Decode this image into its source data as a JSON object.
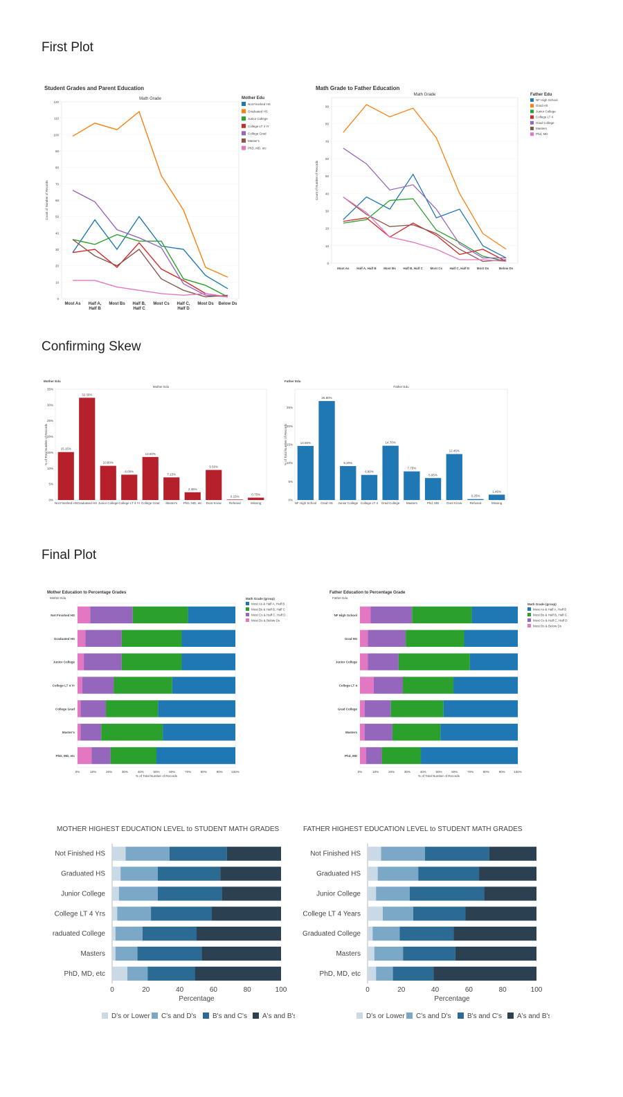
{
  "sections": {
    "first": "First Plot",
    "skew": "Confirming Skew",
    "final": "Final Plot"
  },
  "colors": {
    "tab": [
      "#1f77b4",
      "#ff7f0e",
      "#2ca02c",
      "#d62728",
      "#9467bd",
      "#8c564b",
      "#e377c2"
    ],
    "mother_bar": "#b5202a",
    "father_bar": "#1f77b4",
    "pct_groups": [
      "#1f77b4",
      "#2ca02c",
      "#9467bd",
      "#e377c2"
    ],
    "blues": [
      "#c9d9e6",
      "#7ca8c8",
      "#2b6a92",
      "#2b4152"
    ]
  },
  "chart_data": [
    {
      "type": "line",
      "title": "Student Grades and Parent Education",
      "subtitle": "Math Grade",
      "ylabel": "Count of Number of Records",
      "legend_title": "Mother Edu",
      "legend_position": "top-right",
      "categories": [
        "Most As",
        "Half A, Half B",
        "Most Bs",
        "Half B, Half C",
        "Most Cs",
        "Half C, Half D",
        "Most Ds",
        "Below Ds"
      ],
      "ylim": [
        0,
        120
      ],
      "yticks": [
        0,
        10,
        20,
        30,
        40,
        50,
        60,
        70,
        80,
        90,
        100,
        110,
        120
      ],
      "series": [
        {
          "name": "Not Finished HS",
          "values": [
            28,
            48,
            30,
            50,
            32,
            30,
            14,
            6
          ]
        },
        {
          "name": "Graduated HS",
          "values": [
            99,
            107,
            103,
            114,
            75,
            54,
            19,
            13
          ]
        },
        {
          "name": "Junior College",
          "values": [
            36,
            33,
            39,
            35,
            35,
            12,
            8,
            1
          ]
        },
        {
          "name": "College LT 4 Yr",
          "values": [
            28,
            30,
            19,
            34,
            18,
            11,
            3,
            1
          ]
        },
        {
          "name": "College Grad",
          "values": [
            66,
            59,
            42,
            37,
            31,
            9,
            2,
            1
          ]
        },
        {
          "name": "Master's",
          "values": [
            36,
            26,
            20,
            30,
            12,
            5,
            1,
            2
          ]
        },
        {
          "name": "PhD, MD, etc",
          "values": [
            11,
            11,
            7,
            5,
            3,
            2,
            3,
            1
          ]
        }
      ]
    },
    {
      "type": "line",
      "title": "Math Grade to Father Education",
      "subtitle": "Math Grade",
      "ylabel": "Count of Number of Records",
      "legend_title": "Father Edu",
      "legend_position": "top-right",
      "categories": [
        "Most As",
        "Half A, Half B",
        "Most Bs",
        "Half B, Half C",
        "Most Cs",
        "Half C, Half D",
        "Most Ds",
        "Below Ds"
      ],
      "ylim": [
        0,
        95
      ],
      "yticks": [
        0,
        10,
        20,
        30,
        40,
        50,
        60,
        70,
        80,
        90
      ],
      "series": [
        {
          "name": "NF High School",
          "values": [
            25,
            38,
            31,
            51,
            26,
            31,
            10,
            3
          ]
        },
        {
          "name": "Grad HS",
          "values": [
            75,
            91,
            84,
            89,
            72,
            40,
            17,
            8
          ]
        },
        {
          "name": "Junior College",
          "values": [
            23,
            25,
            36,
            37,
            19,
            12,
            4,
            1
          ]
        },
        {
          "name": "College LT 4",
          "values": [
            24,
            26,
            15,
            23,
            16,
            5,
            8,
            1
          ]
        },
        {
          "name": "Grad College",
          "values": [
            66,
            57,
            42,
            45,
            31,
            11,
            3,
            3
          ]
        },
        {
          "name": "Masters",
          "values": [
            38,
            28,
            21,
            22,
            17,
            8,
            1,
            2
          ]
        },
        {
          "name": "Phd, MD",
          "values": [
            38,
            29,
            15,
            12,
            8,
            2,
            2,
            1
          ]
        }
      ]
    },
    {
      "type": "bar",
      "title": "Mother Edu",
      "subtitle": "Mother Edu",
      "ylabel": "% of Total Number of Records",
      "categories": [
        "Not Finished HS",
        "Graduated HS",
        "Junior College",
        "College LT 4 Yr",
        "College Grad",
        "Master's",
        "PhD, MD, etc",
        "Dont Know",
        "Refused",
        "Missing"
      ],
      "values": [
        15.15,
        32.3,
        10.8,
        8.0,
        13.6,
        7.15,
        2.45,
        9.5,
        0.15,
        0.75
      ],
      "value_labels": [
        "15.15%",
        "32.30%",
        "10.80%",
        "8.00%",
        "13.60%",
        "7.15%",
        "2.45%",
        "9.50%",
        "0.15%",
        "0.75%"
      ],
      "ylim": [
        0,
        35
      ],
      "yticks": [
        "0%",
        "5%",
        "10%",
        "15%",
        "20%",
        "25%",
        "30%",
        "35%"
      ]
    },
    {
      "type": "bar",
      "title": "Father Edu",
      "subtitle": "Father Edu",
      "ylabel": "% of Total Number of Records",
      "categories": [
        "NF High School",
        "Grad HS",
        "Junior College",
        "College LT 4",
        "Grad College",
        "Masters",
        "Phd, MD",
        "Dont Know",
        "Refused",
        "Missing"
      ],
      "values": [
        14.65,
        26.8,
        9.2,
        6.8,
        14.7,
        7.75,
        5.95,
        12.45,
        0.25,
        1.45
      ],
      "value_labels": [
        "14.65%",
        "26.80%",
        "9.20%",
        "6.80%",
        "14.70%",
        "7.75%",
        "5.95%",
        "12.45%",
        "0.25%",
        "1.45%"
      ],
      "ylim": [
        0,
        30
      ],
      "yticks": [
        "0%",
        "5%",
        "10%",
        "15%",
        "20%",
        "25%"
      ]
    },
    {
      "type": "bar",
      "title": "Mother Education to Percentage Grades",
      "subtitle": "Mother Edu",
      "xlabel": "% of Total Number of Records",
      "legend_title": "Math Grade (group)",
      "legend_position": "top-right",
      "categories": [
        "Not Finished HS",
        "Graduated HS",
        "Junior College",
        "College LT 4 Yr",
        "College Grad",
        "Master's",
        "PhD, MD, etc"
      ],
      "xticks": [
        "0%",
        "10%",
        "20%",
        "30%",
        "40%",
        "50%",
        "60%",
        "70%",
        "80%",
        "90%",
        "100%"
      ],
      "series": [
        {
          "name": "Most Ds & Below Ds",
          "values": [
            8,
            5,
            4,
            3,
            2,
            2,
            9
          ]
        },
        {
          "name": "Most Cs & Half C, Half D",
          "values": [
            27,
            23,
            24,
            20,
            16,
            13,
            12
          ]
        },
        {
          "name": "Most Bs & Half B, Half C",
          "values": [
            35,
            38,
            38,
            37,
            33,
            39,
            29
          ]
        },
        {
          "name": "Most As & Half A, Half B",
          "values": [
            30,
            34,
            34,
            40,
            49,
            46,
            50
          ]
        }
      ],
      "legend_entries": [
        "Most As & Half A, Half B",
        "Most Bs & Half B, Half C",
        "Most Cs & Half C, Half D",
        "Most Ds & Below Ds"
      ]
    },
    {
      "type": "bar",
      "title": "Father Education to Percentage Grade",
      "subtitle": "Father Edu",
      "xlabel": "% of Total Number of Records",
      "legend_title": "Math Grade (group)",
      "legend_position": "top-right",
      "categories": [
        "NF High School",
        "Grad HS",
        "Junior College",
        "College LT 4",
        "Grad College",
        "Masters",
        "Phd, MD"
      ],
      "xticks": [
        "0%",
        "10%",
        "20%",
        "30%",
        "40%",
        "50%",
        "60%",
        "70%",
        "80%",
        "90%",
        "100%"
      ],
      "series": [
        {
          "name": "Most Ds & Below Ds",
          "values": [
            7,
            5,
            5,
            9,
            3,
            3,
            4
          ]
        },
        {
          "name": "Most Cs & Half C, Half D",
          "values": [
            27,
            24,
            20,
            19,
            17,
            18,
            10
          ]
        },
        {
          "name": "Most Bs & Half B, Half C",
          "values": [
            39,
            37,
            46,
            33,
            34,
            31,
            25
          ]
        },
        {
          "name": "Most As & Half A, Half B",
          "values": [
            30,
            34,
            31,
            42,
            48,
            50,
            62
          ]
        }
      ],
      "legend_entries": [
        "Most As & Half A, Half B",
        "Most Bs & Half B, Half C",
        "Most Cs & Half C, Half D",
        "Most Ds & Below Ds"
      ]
    },
    {
      "type": "bar",
      "title": "MOTHER HIGHEST EDUCATION LEVEL to STUDENT MATH GRADES",
      "xlabel": "Percentage",
      "xlim": [
        0,
        100
      ],
      "xticks": [
        "0",
        "20",
        "40",
        "60",
        "80",
        "100"
      ],
      "categories": [
        "Not Finished HS",
        "Graduated HS",
        "Junior College",
        "College LT 4 Yrs",
        "Graduated College",
        "Masters",
        "PhD, MD, etc"
      ],
      "series": [
        {
          "name": "D's or Lower",
          "values": [
            8,
            5,
            4,
            3,
            2,
            2,
            9
          ]
        },
        {
          "name": "C's and D's",
          "values": [
            26,
            22,
            23,
            20,
            16,
            13,
            12
          ]
        },
        {
          "name": "B's and C's",
          "values": [
            34,
            37,
            38,
            36,
            32,
            38,
            28
          ]
        },
        {
          "name": "A's and B's",
          "values": [
            32,
            36,
            35,
            41,
            50,
            47,
            51
          ]
        }
      ],
      "legend_position": "bottom"
    },
    {
      "type": "bar",
      "title": "FATHER HIGHEST EDUCATION LEVEL to STUDENT MATH GRADES",
      "xlabel": "Percentage",
      "xlim": [
        0,
        100
      ],
      "xticks": [
        "0",
        "20",
        "40",
        "60",
        "80",
        "100"
      ],
      "categories": [
        "Not Finished HS",
        "Graduated HS",
        "Junior College",
        "College LT 4 Years",
        "Graduated College",
        "Masters",
        "PhD, MD, etc"
      ],
      "series": [
        {
          "name": "D's or Lower",
          "values": [
            8,
            6,
            5,
            9,
            3,
            4,
            5
          ]
        },
        {
          "name": "C's and D's",
          "values": [
            26,
            24,
            20,
            18,
            16,
            17,
            10
          ]
        },
        {
          "name": "B's and C's",
          "values": [
            38,
            36,
            44,
            31,
            32,
            31,
            24
          ]
        },
        {
          "name": "A's and B's",
          "values": [
            28,
            34,
            31,
            42,
            49,
            48,
            61
          ]
        }
      ],
      "legend_position": "bottom"
    }
  ]
}
